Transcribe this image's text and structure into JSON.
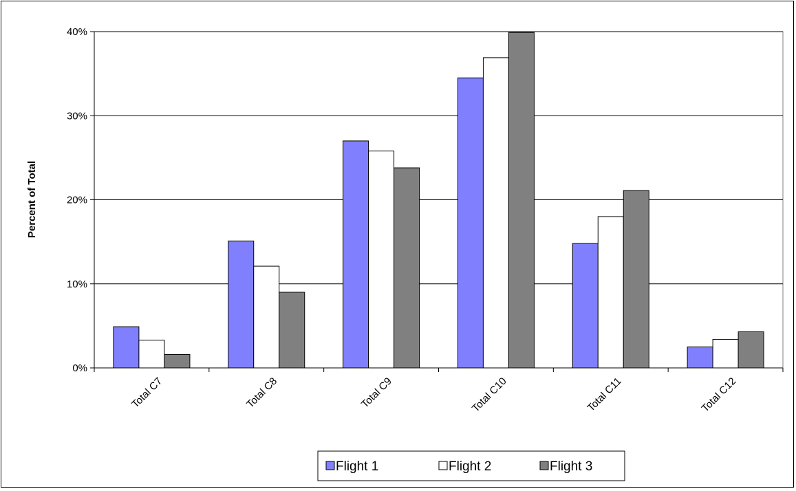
{
  "chart_data": {
    "type": "bar",
    "title": "",
    "xlabel": "",
    "ylabel": "Percent of Total",
    "ylim": [
      0,
      40
    ],
    "yticks": [
      0,
      10,
      20,
      30,
      40
    ],
    "ytick_suffix": "%",
    "grid": true,
    "legend_position": "bottom-center",
    "categories": [
      "Total C7",
      "Total C8",
      "Total C9",
      "Total C10",
      "Total C11",
      "Total C12"
    ],
    "series": [
      {
        "name": "Flight 1",
        "color": "#8080ff",
        "values": [
          4.9,
          15.1,
          27.0,
          34.5,
          14.8,
          2.5
        ]
      },
      {
        "name": "Flight 2",
        "color": "#ffffff",
        "values": [
          3.3,
          12.1,
          25.8,
          36.9,
          18.0,
          3.4
        ]
      },
      {
        "name": "Flight 3",
        "color": "#808080",
        "values": [
          1.6,
          9.0,
          23.8,
          39.9,
          21.1,
          4.3
        ]
      }
    ]
  }
}
